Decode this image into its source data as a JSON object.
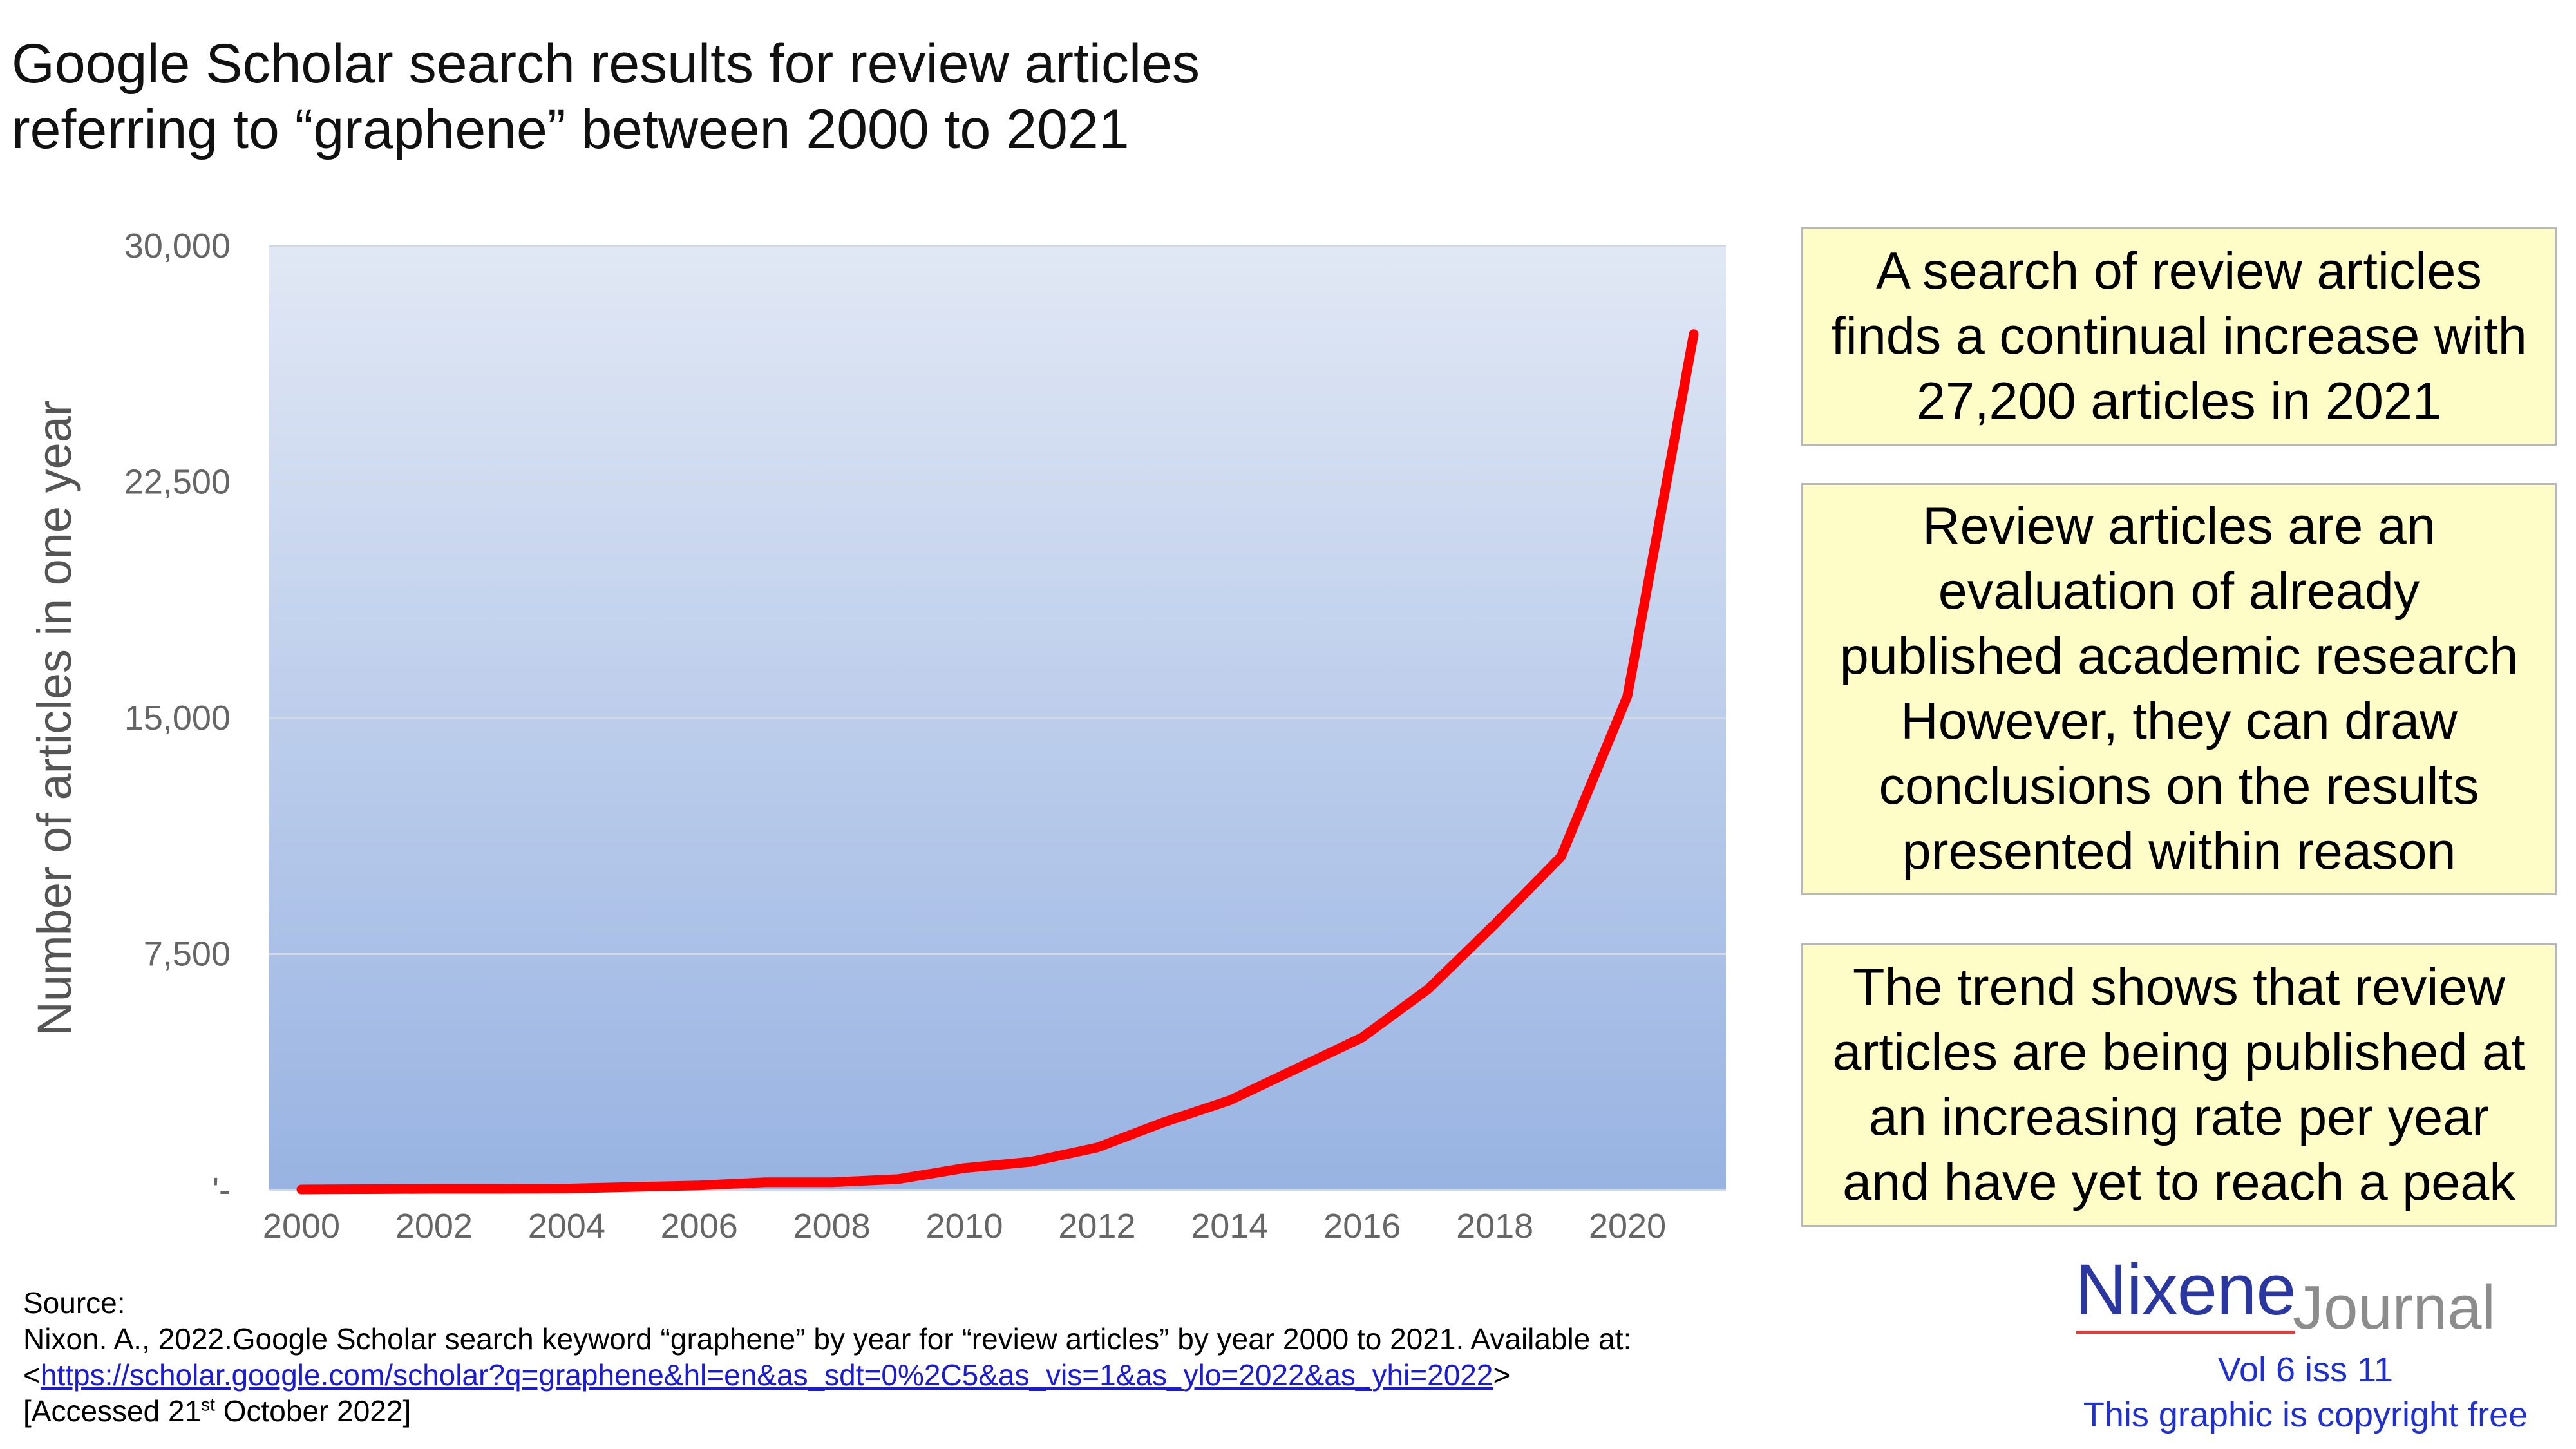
{
  "title": {
    "line1": "Google Scholar search results for review articles",
    "line2": "referring to “graphene” between 2000 to 2021"
  },
  "chart_data": {
    "type": "line",
    "title": "Google Scholar search results for review articles referring to “graphene” between 2000 to 2021",
    "xlabel": "",
    "ylabel": "Number of articles in one year",
    "ylim": [
      0,
      30000
    ],
    "yticks": [
      0,
      7500,
      15000,
      22500,
      30000
    ],
    "ytick_labels": [
      "'-",
      "7,500",
      "15,000",
      "22,500",
      "30,000"
    ],
    "xticks": [
      2000,
      2002,
      2004,
      2006,
      2008,
      2010,
      2012,
      2014,
      2016,
      2018,
      2020
    ],
    "xlim": [
      2000,
      2021
    ],
    "grid": true,
    "series": [
      {
        "color": "#ff0000",
        "x": [
          2000,
          2001,
          2002,
          2003,
          2004,
          2005,
          2006,
          2007,
          2008,
          2009,
          2010,
          2011,
          2012,
          2013,
          2014,
          2015,
          2016,
          2017,
          2018,
          2019,
          2020,
          2021
        ],
        "y": [
          20,
          30,
          40,
          40,
          50,
          100,
          150,
          250,
          250,
          350,
          700,
          900,
          1350,
          2150,
          2850,
          3850,
          4850,
          6400,
          8450,
          10600,
          15700,
          27200
        ]
      }
    ]
  },
  "callouts": [
    [
      "A search of review articles",
      "finds a continual increase with",
      "27,200 articles in 2021"
    ],
    [
      "Review articles are an",
      "evaluation of already",
      "published academic research",
      "However, they can draw",
      "conclusions on the results",
      "presented within reason"
    ],
    [
      "The trend shows that review",
      "articles are being published at",
      "an increasing rate per year",
      "and have yet to reach a peak"
    ]
  ],
  "source": {
    "label": "Source:",
    "citation": "Nixon. A., 2022.Google Scholar search keyword “graphene” by year for “review articles” by year 2000 to 2021. Available at:",
    "link_open": "<",
    "url": "https://scholar.google.com/scholar?q=graphene&hl=en&as_sdt=0%2C5&as_vis=1&as_ylo=2022&as_yhi=2022",
    "link_close": ">",
    "accessed_pre": "[Accessed 21",
    "accessed_sup": "st",
    "accessed_post": " October 2022]"
  },
  "logo": {
    "main": "Nixene",
    "sub": "Journal",
    "volume": "Vol 6 iss 11",
    "copyright": "This graphic is copyright free"
  },
  "colors": {
    "line": "#ff0000",
    "plot_top": "#e1e8f5",
    "plot_bottom": "#98b3e2",
    "callout_bg": "#fefdc8",
    "logo_blue": "#2a37a0",
    "link": "#1b1bd6"
  }
}
